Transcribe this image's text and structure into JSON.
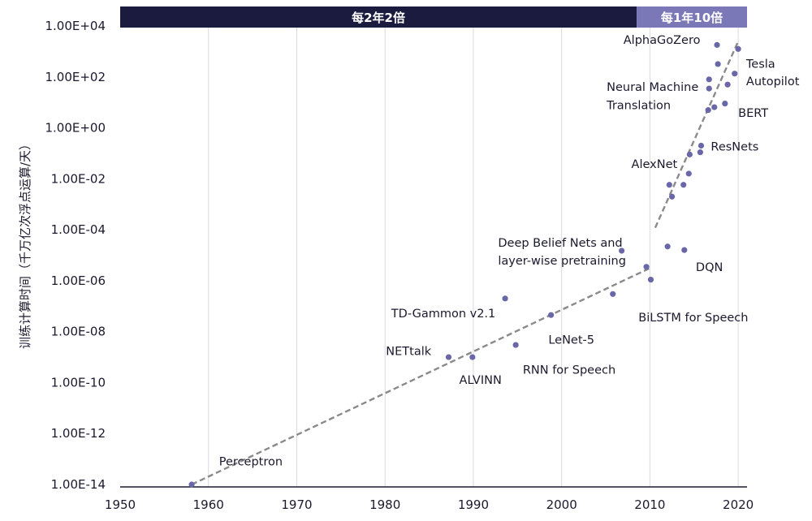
{
  "chart_data": {
    "type": "scatter",
    "ylabel": "训练计算时间（千万亿次浮点运算/天）",
    "y_scale": "log",
    "xlim": [
      1950,
      2021
    ],
    "ylim_exp": [
      -14,
      4
    ],
    "x_ticks": [
      "1950",
      "1960",
      "1970",
      "1980",
      "1990",
      "2000",
      "2010",
      "2020"
    ],
    "y_ticks": [
      "1.00E+04",
      "1.00E+02",
      "1.00E+00",
      "1.00E-02",
      "1.00E-04",
      "1.00E-06",
      "1.00E-08",
      "1.00E-10",
      "1.00E-12",
      "1.00E-14"
    ],
    "grid": "vertical",
    "banners": [
      {
        "label": "每2年2倍",
        "x_start": 1950,
        "x_end": 2008.5,
        "color": "#1b1a3f"
      },
      {
        "label": "每1年10倍",
        "x_start": 2008.5,
        "x_end": 2021,
        "color": "#7b78b8"
      }
    ],
    "series": [
      {
        "color": "#6a67a8",
        "points": [
          {
            "x": 1958.1,
            "y": 1e-14,
            "label": "Perceptron"
          },
          {
            "x": 1987.2,
            "y": 1e-09,
            "label": "NETtalk"
          },
          {
            "x": 1989.9,
            "y": 1e-09,
            "label": "ALVINN"
          },
          {
            "x": 1993.6,
            "y": 2e-07,
            "label": "TD-Gammon v2.1"
          },
          {
            "x": 1994.8,
            "y": 3e-09,
            "label": "RNN for Speech"
          },
          {
            "x": 1998.8,
            "y": 4.5e-08,
            "label": "LeNet-5"
          },
          {
            "x": 2005.8,
            "y": 3e-07,
            "label": "BiLSTM for Speech"
          },
          {
            "x": 2006.8,
            "y": 1.5e-05,
            "label": "Deep Belief Nets and layer-wise pretraining"
          },
          {
            "x": 2009.6,
            "y": 3.5e-06
          },
          {
            "x": 2010.1,
            "y": 1.1e-06
          },
          {
            "x": 2012.0,
            "y": 2.2e-05
          },
          {
            "x": 2013.9,
            "y": 1.6e-05,
            "label": "DQN"
          },
          {
            "x": 2012.2,
            "y": 0.0058
          },
          {
            "x": 2012.5,
            "y": 0.002
          },
          {
            "x": 2013.8,
            "y": 0.0058
          },
          {
            "x": 2014.4,
            "y": 0.016,
            "label": "AlexNet"
          },
          {
            "x": 2014.5,
            "y": 0.09
          },
          {
            "x": 2015.7,
            "y": 0.11
          },
          {
            "x": 2015.8,
            "y": 0.2,
            "label": "ResNets"
          },
          {
            "x": 2016.6,
            "y": 5.0
          },
          {
            "x": 2017.3,
            "y": 6.5
          },
          {
            "x": 2018.5,
            "y": 9.0,
            "label": "BERT"
          },
          {
            "x": 2016.7,
            "y": 35
          },
          {
            "x": 2016.7,
            "y": 80,
            "label": "Neural Machine Translation"
          },
          {
            "x": 2018.8,
            "y": 50
          },
          {
            "x": 2017.7,
            "y": 320
          },
          {
            "x": 2019.6,
            "y": 135,
            "label": "Tesla Autopilot"
          },
          {
            "x": 2017.6,
            "y": 1800,
            "label": "AlphaGoZero"
          },
          {
            "x": 2020.0,
            "y": 1250
          }
        ]
      }
    ],
    "trendlines": [
      {
        "from": [
          1958.1,
          1e-14
        ],
        "to": [
          2009.9,
          3e-06
        ],
        "style": "dashed"
      },
      {
        "from": [
          2010.6,
          0.00012
        ],
        "to": [
          2020.0,
          2500
        ],
        "style": "dashed"
      }
    ],
    "annotations": [
      {
        "text": "AlphaGoZero",
        "x": 2007.0,
        "y": 2000
      },
      {
        "text": "Tesla",
        "x": 2020.9,
        "y": 230
      },
      {
        "text": "Autopilot",
        "x": 2020.9,
        "y": 48
      },
      {
        "text": "Neural Machine",
        "x": 2005.1,
        "y": 28
      },
      {
        "text": "Translation",
        "x": 2005.1,
        "y": 5.5
      },
      {
        "text": "BERT",
        "x": 2020.0,
        "y": 2.7
      },
      {
        "text": "ResNets",
        "x": 2016.9,
        "y": 0.13
      },
      {
        "text": "AlexNet",
        "x": 2007.9,
        "y": 0.027
      },
      {
        "text": "Deep Belief Nets and",
        "x": 1992.8,
        "y": 2.2e-05
      },
      {
        "text": "layer-wise pretraining",
        "x": 1992.8,
        "y": 4.3e-06
      },
      {
        "text": "DQN",
        "x": 2015.2,
        "y": 2.4e-06
      },
      {
        "text": "TD-Gammon v2.1",
        "x": 1980.7,
        "y": 3.6e-08
      },
      {
        "text": "BiLSTM for Speech",
        "x": 2008.7,
        "y": 2.5e-08
      },
      {
        "text": "LeNet-5",
        "x": 1998.5,
        "y": 3.4e-09
      },
      {
        "text": "NETtalk",
        "x": 1980.1,
        "y": 1.2e-09
      },
      {
        "text": "RNN for Speech",
        "x": 1995.6,
        "y": 2.2e-10
      },
      {
        "text": "ALVINN",
        "x": 1988.4,
        "y": 9e-11
      },
      {
        "text": "Perceptron",
        "x": 1961.2,
        "y": 5.7e-14
      }
    ]
  }
}
